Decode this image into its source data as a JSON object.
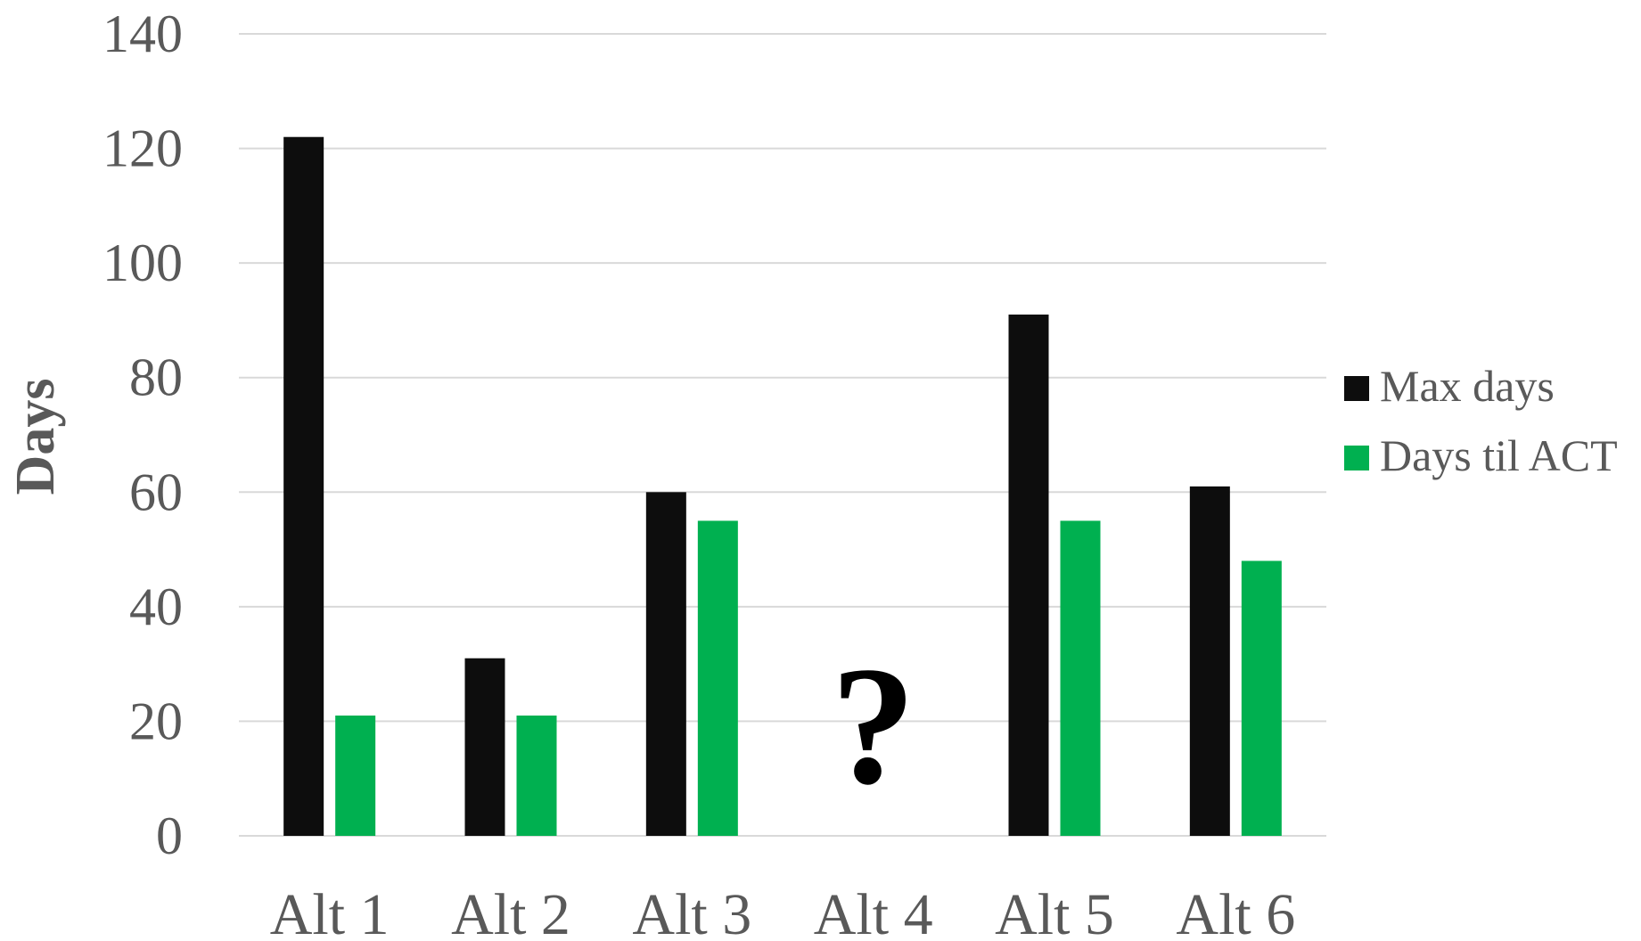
{
  "chart_data": {
    "type": "bar",
    "title": "",
    "xlabel": "",
    "ylabel": "Days",
    "categories": [
      "Alt 1",
      "Alt 2",
      "Alt 3",
      "Alt 4",
      "Alt 5",
      "Alt 6"
    ],
    "series": [
      {
        "name": "Max days",
        "color": "#0d0d0d",
        "values": [
          122,
          31,
          60,
          null,
          91,
          61
        ]
      },
      {
        "name": "Days til ACT",
        "color": "#00b050",
        "values": [
          21,
          21,
          55,
          null,
          55,
          48
        ]
      }
    ],
    "ylim": [
      0,
      140
    ],
    "yticks": [
      0,
      20,
      40,
      60,
      80,
      100,
      120,
      140
    ],
    "grid": true,
    "legend_position": "right",
    "annotations": [
      {
        "category": "Alt 4",
        "text": "?"
      }
    ]
  }
}
